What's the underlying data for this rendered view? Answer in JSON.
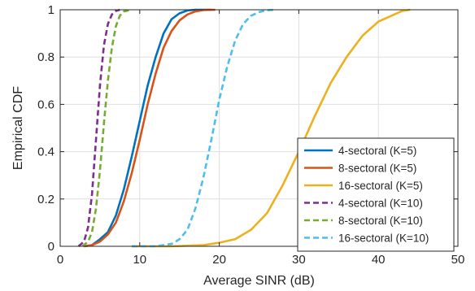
{
  "chart_data": {
    "type": "line",
    "title": "",
    "xlabel": "Average SINR (dB)",
    "ylabel": "Empirical CDF",
    "xlim": [
      0,
      50
    ],
    "ylim": [
      0,
      1
    ],
    "xticks": [
      0,
      10,
      20,
      30,
      40,
      50
    ],
    "yticks": [
      0,
      0.2,
      0.4,
      0.6,
      0.8,
      1
    ],
    "xtick_labels": [
      "0",
      "10",
      "20",
      "30",
      "40",
      "50"
    ],
    "ytick_labels": [
      "0",
      "0.2",
      "0.4",
      "0.6",
      "0.8",
      "1"
    ],
    "grid": true,
    "legend_position": "lower-right",
    "series": [
      {
        "name": "4-sectoral (K=5)",
        "color": "#0072BD",
        "style": "solid",
        "points": [
          [
            3,
            0
          ],
          [
            4,
            0.005
          ],
          [
            5,
            0.03
          ],
          [
            6,
            0.06
          ],
          [
            7,
            0.13
          ],
          [
            8,
            0.24
          ],
          [
            9,
            0.38
          ],
          [
            10,
            0.53
          ],
          [
            11,
            0.68
          ],
          [
            12,
            0.8
          ],
          [
            13,
            0.9
          ],
          [
            14,
            0.96
          ],
          [
            15,
            0.985
          ],
          [
            16,
            0.997
          ],
          [
            17,
            1
          ],
          [
            19,
            1
          ]
        ]
      },
      {
        "name": "8-sectoral (K=5)",
        "color": "#D95319",
        "style": "solid",
        "points": [
          [
            3,
            0
          ],
          [
            4,
            0.005
          ],
          [
            5,
            0.02
          ],
          [
            6,
            0.05
          ],
          [
            7,
            0.1
          ],
          [
            8,
            0.19
          ],
          [
            9,
            0.31
          ],
          [
            10,
            0.45
          ],
          [
            11,
            0.6
          ],
          [
            12,
            0.73
          ],
          [
            13,
            0.84
          ],
          [
            14,
            0.91
          ],
          [
            15,
            0.955
          ],
          [
            16,
            0.98
          ],
          [
            17,
            0.993
          ],
          [
            18,
            0.999
          ],
          [
            19.5,
            1
          ]
        ]
      },
      {
        "name": "16-sectoral (K=5)",
        "color": "#EDB120",
        "style": "solid",
        "points": [
          [
            9,
            0
          ],
          [
            14,
            0
          ],
          [
            18,
            0.005
          ],
          [
            20,
            0.015
          ],
          [
            22,
            0.03
          ],
          [
            24,
            0.07
          ],
          [
            26,
            0.14
          ],
          [
            28,
            0.26
          ],
          [
            30,
            0.4
          ],
          [
            32,
            0.55
          ],
          [
            34,
            0.69
          ],
          [
            36,
            0.8
          ],
          [
            38,
            0.89
          ],
          [
            40,
            0.95
          ],
          [
            42,
            0.98
          ],
          [
            43,
            0.995
          ],
          [
            44,
            1
          ]
        ]
      },
      {
        "name": "4-sectoral (K=10)",
        "color": "#7E2F8E",
        "style": "dashed",
        "points": [
          [
            2.3,
            0
          ],
          [
            3,
            0.02
          ],
          [
            3.5,
            0.08
          ],
          [
            4,
            0.22
          ],
          [
            4.5,
            0.45
          ],
          [
            5,
            0.68
          ],
          [
            5.5,
            0.85
          ],
          [
            6,
            0.94
          ],
          [
            6.5,
            0.98
          ],
          [
            7,
            0.995
          ],
          [
            7.5,
            1
          ]
        ]
      },
      {
        "name": "8-sectoral (K=10)",
        "color": "#77AC30",
        "style": "dashed",
        "points": [
          [
            2.8,
            0
          ],
          [
            3.5,
            0.02
          ],
          [
            4,
            0.06
          ],
          [
            4.5,
            0.16
          ],
          [
            5,
            0.32
          ],
          [
            5.5,
            0.52
          ],
          [
            6,
            0.7
          ],
          [
            6.5,
            0.84
          ],
          [
            7,
            0.93
          ],
          [
            7.5,
            0.975
          ],
          [
            8,
            0.993
          ],
          [
            9,
            1
          ]
        ]
      },
      {
        "name": "16-sectoral (K=10)",
        "color": "#4DBEEE",
        "style": "dashed",
        "points": [
          [
            9,
            0
          ],
          [
            12,
            0
          ],
          [
            14,
            0.01
          ],
          [
            15,
            0.03
          ],
          [
            16,
            0.07
          ],
          [
            17,
            0.16
          ],
          [
            18,
            0.29
          ],
          [
            19,
            0.45
          ],
          [
            20,
            0.62
          ],
          [
            21,
            0.76
          ],
          [
            22,
            0.87
          ],
          [
            23,
            0.94
          ],
          [
            24,
            0.975
          ],
          [
            25,
            0.99
          ],
          [
            26,
            0.998
          ],
          [
            27,
            1
          ]
        ]
      }
    ]
  }
}
